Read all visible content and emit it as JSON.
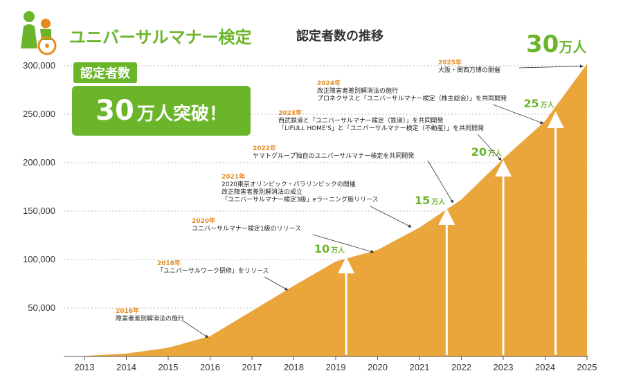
{
  "header": {
    "brand": "ユニバーサルマナー検定",
    "subtitle": "認定者数の推移"
  },
  "badge": {
    "label": "認定者数",
    "main_number": "30",
    "main_suffix": "万人突破！"
  },
  "top_total": {
    "number": "30",
    "unit": "万人"
  },
  "colors": {
    "area": "#eaa63b",
    "green": "#6bb52b",
    "annotation_year": "#e58a1f"
  },
  "chart_data": {
    "type": "area",
    "x": [
      2013,
      2014,
      2015,
      2016,
      2017,
      2018,
      2019,
      2020,
      2021,
      2022,
      2023,
      2024,
      2025
    ],
    "x_labels": [
      "2013",
      "2014",
      "2015",
      "2016",
      "2017",
      "2018",
      "2019",
      "2020",
      "2021",
      "2022",
      "2023",
      "2024",
      "2025"
    ],
    "values": [
      500,
      3000,
      9000,
      21000,
      47000,
      73000,
      98000,
      110000,
      133000,
      162000,
      204000,
      243000,
      302000
    ],
    "ylim": [
      0,
      320000
    ],
    "yticks": [
      50000,
      100000,
      150000,
      200000,
      250000,
      300000
    ],
    "ytick_labels": [
      "50,000",
      "100,000",
      "150,000",
      "200,000",
      "250,000",
      "300,000"
    ],
    "grid": true,
    "milestones": [
      {
        "x": 2019.25,
        "value": 100000,
        "num": "10",
        "unit": "万人"
      },
      {
        "x": 2021.65,
        "value": 150000,
        "num": "15",
        "unit": "万人"
      },
      {
        "x": 2023.0,
        "value": 200000,
        "num": "20",
        "unit": "万人"
      },
      {
        "x": 2024.25,
        "value": 250000,
        "num": "25",
        "unit": "万人"
      }
    ],
    "annotations": [
      {
        "year": "2016年",
        "lines": [
          "障害者差別解消法の施行"
        ],
        "point": [
          2016.0,
          21000
        ]
      },
      {
        "year": "2018年",
        "lines": [
          "「ユニバーサルワーク研修」をリリース"
        ],
        "point": [
          2017.9,
          70000
        ]
      },
      {
        "year": "2020年",
        "lines": [
          "ユニバーサルマナー検定1級のリリース"
        ],
        "point": [
          2019.95,
          109000
        ]
      },
      {
        "year": "2021年",
        "lines": [
          "2020東京オリンピック・パラリンピックの開催",
          "改正障害者差別解消法の成立",
          "「ユニバーサルマナー検定3級」eラーニング版リリース"
        ],
        "point": [
          2020.85,
          135000
        ]
      },
      {
        "year": "2022年",
        "lines": [
          "ヤマトグループ独自のユニバーサルマナー検定を共同開発"
        ],
        "point": [
          2021.85,
          160000
        ]
      },
      {
        "year": "2023年",
        "lines": [
          "西武鉄道と「ユニバーサルマナー検定（鉄道）」を共同開発",
          "「LIFULL HOME'S」と「ユニバーサルマナー検定（不動産）」を共同開発"
        ],
        "point": [
          2023.0,
          204000
        ]
      },
      {
        "year": "2024年",
        "lines": [
          "改正障害者差別解消法の施行",
          "プロネクサスと「ユニバーサルマナー検定（株主総会）」を共同開発"
        ],
        "point": [
          2024.0,
          242000
        ]
      },
      {
        "year": "2025年",
        "lines": [
          "大阪・関西万博の開催"
        ],
        "point": [
          2024.95,
          301000
        ]
      }
    ]
  }
}
